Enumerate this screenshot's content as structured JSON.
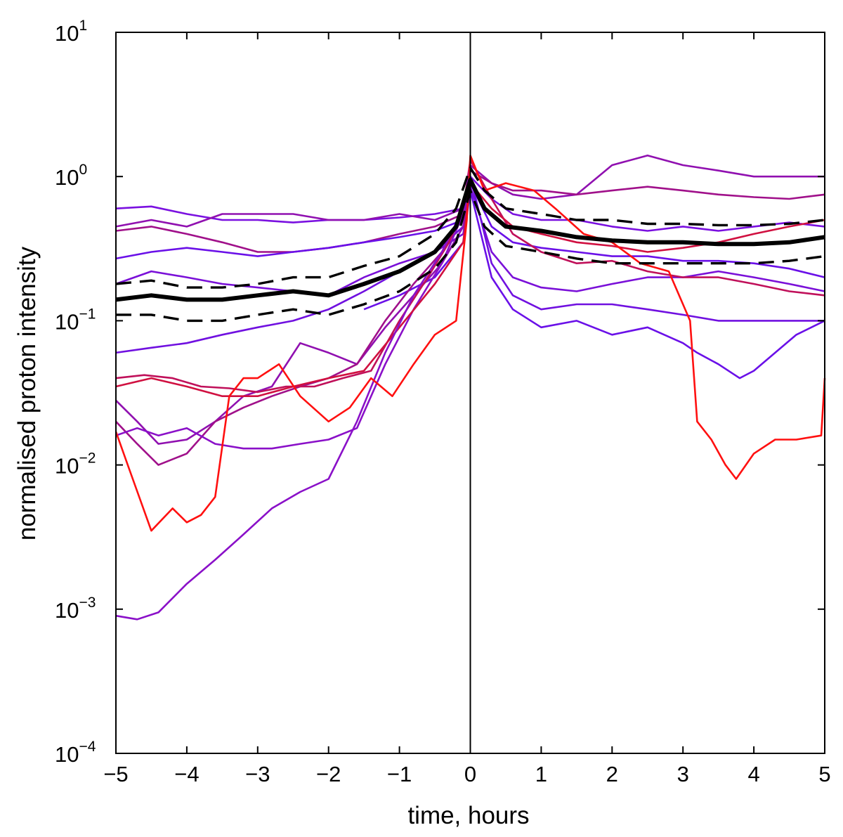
{
  "chart_data": {
    "type": "line",
    "title": "",
    "xlabel": "time, hours",
    "ylabel": "normalised proton intensity",
    "xlim": [
      -5,
      5
    ],
    "ylim": [
      0.0001,
      10
    ],
    "yscale": "log",
    "grid": false,
    "legend": "none",
    "x_ticks": [
      -5,
      -4,
      -3,
      -2,
      -1,
      0,
      1,
      2,
      3,
      4,
      5
    ],
    "x_tick_labels": [
      "−5",
      "−4",
      "−3",
      "−2",
      "−1",
      "0",
      "1",
      "2",
      "3",
      "4",
      "5"
    ],
    "y_ticks": [
      {
        "value": 0.0001,
        "base": "10",
        "exp": "−4"
      },
      {
        "value": 0.001,
        "base": "10",
        "exp": "−3"
      },
      {
        "value": 0.01,
        "base": "10",
        "exp": "−2"
      },
      {
        "value": 0.1,
        "base": "10",
        "exp": "−1"
      },
      {
        "value": 1,
        "base": "10",
        "exp": "0"
      },
      {
        "value": 10,
        "base": "10",
        "exp": "1"
      }
    ],
    "vline_x": 0,
    "series": [
      {
        "color": "#7a10e0",
        "x": [
          -5,
          -4.5,
          -4,
          -3.5,
          -3,
          -2.5,
          -2,
          -1.5,
          -1,
          -0.5,
          -0.1,
          0,
          0.3,
          0.6,
          1,
          1.5,
          2,
          2.5,
          3,
          3.5,
          4,
          4.5,
          5
        ],
        "y": [
          0.6,
          0.62,
          0.55,
          0.5,
          0.5,
          0.48,
          0.5,
          0.5,
          0.52,
          0.55,
          0.6,
          1.0,
          0.7,
          0.55,
          0.5,
          0.5,
          0.45,
          0.42,
          0.45,
          0.42,
          0.45,
          0.48,
          0.45
        ]
      },
      {
        "color": "#9010b0",
        "x": [
          -5,
          -4.5,
          -4,
          -3.5,
          -3,
          -2.5,
          -2,
          -1.5,
          -1,
          -0.5,
          -0.1,
          0,
          0.3,
          0.6,
          1,
          1.5,
          2,
          2.5,
          3,
          3.5,
          4,
          4.5,
          5
        ],
        "y": [
          0.45,
          0.5,
          0.45,
          0.55,
          0.55,
          0.55,
          0.5,
          0.5,
          0.55,
          0.5,
          0.6,
          1.2,
          0.9,
          0.75,
          0.7,
          0.75,
          1.2,
          1.4,
          1.2,
          1.1,
          1.0,
          1.0,
          1.0
        ]
      },
      {
        "color": "#a0108a",
        "x": [
          -5,
          -4.5,
          -4,
          -3.5,
          -3,
          -2.5,
          -2,
          -1.5,
          -1,
          -0.5,
          -0.1,
          0,
          0.3,
          0.6,
          1,
          1.5,
          2,
          2.5,
          3,
          3.5,
          4,
          4.5,
          5
        ],
        "y": [
          0.42,
          0.45,
          0.4,
          0.35,
          0.3,
          0.3,
          0.32,
          0.35,
          0.4,
          0.45,
          0.55,
          1.1,
          0.9,
          0.8,
          0.8,
          0.75,
          0.8,
          0.85,
          0.8,
          0.75,
          0.72,
          0.7,
          0.75
        ]
      },
      {
        "color": "#6a10e8",
        "x": [
          -5,
          -4.5,
          -4,
          -3.5,
          -3,
          -2.5,
          -2,
          -1.5,
          -1,
          -0.5,
          -0.1,
          0,
          0.3,
          0.6,
          1,
          1.5,
          2,
          2.5,
          3,
          3.5,
          4,
          4.5,
          5
        ],
        "y": [
          0.27,
          0.3,
          0.32,
          0.3,
          0.28,
          0.3,
          0.32,
          0.35,
          0.38,
          0.42,
          0.5,
          0.9,
          0.45,
          0.35,
          0.32,
          0.3,
          0.28,
          0.28,
          0.26,
          0.26,
          0.25,
          0.23,
          0.2
        ]
      },
      {
        "color": "#7a10d8",
        "x": [
          -5,
          -4.5,
          -4,
          -3.5,
          -3,
          -2.5,
          -2,
          -1.5,
          -1,
          -0.5,
          -0.1,
          0,
          0.3,
          0.6,
          1,
          1.5,
          2,
          2.5,
          3,
          3.5,
          4,
          4.5,
          5
        ],
        "y": [
          0.18,
          0.22,
          0.2,
          0.18,
          0.17,
          0.16,
          0.15,
          0.2,
          0.25,
          0.3,
          0.4,
          0.85,
          0.3,
          0.2,
          0.17,
          0.16,
          0.18,
          0.2,
          0.2,
          0.22,
          0.2,
          0.18,
          0.16
        ]
      },
      {
        "color": "#7010e0",
        "x": [
          -5,
          -4.5,
          -4,
          -3.5,
          -3,
          -2.5,
          -2,
          -1.5,
          -1,
          -0.5,
          -0.1,
          0,
          0.3,
          0.6,
          1,
          1.5,
          2,
          2.5,
          3,
          3.5,
          4,
          4.5,
          5
        ],
        "y": [
          0.06,
          0.065,
          0.07,
          0.08,
          0.09,
          0.1,
          0.12,
          0.16,
          0.22,
          0.3,
          0.45,
          1.0,
          0.25,
          0.15,
          0.12,
          0.13,
          0.13,
          0.12,
          0.11,
          0.1,
          0.1,
          0.1,
          0.1
        ]
      },
      {
        "color": "#6a10e8",
        "x": [
          -1.5,
          -1,
          -0.5,
          -0.1,
          0,
          0.3,
          0.6,
          1,
          1.5,
          2,
          2.5,
          3,
          3.2,
          3.5,
          3.8,
          4,
          4.3,
          4.6,
          5
        ],
        "y": [
          0.12,
          0.15,
          0.2,
          0.35,
          0.8,
          0.2,
          0.12,
          0.09,
          0.1,
          0.08,
          0.09,
          0.07,
          0.06,
          0.05,
          0.04,
          0.045,
          0.06,
          0.08,
          0.1
        ]
      },
      {
        "color": "#9010b0",
        "x": [
          -5,
          -4.7,
          -4.4,
          -4,
          -3.6,
          -3.2,
          -2.8,
          -2.4,
          -2,
          -1.6,
          -1.2,
          -0.8,
          -0.4,
          -0.1,
          0
        ],
        "y": [
          0.028,
          0.02,
          0.014,
          0.015,
          0.02,
          0.03,
          0.035,
          0.07,
          0.06,
          0.05,
          0.09,
          0.15,
          0.25,
          0.45,
          1.0
        ]
      },
      {
        "color": "#a0108a",
        "x": [
          -5,
          -4.7,
          -4.4,
          -4,
          -3.6,
          -3.2,
          -2.8,
          -2.4,
          -2,
          -1.6,
          -1.2,
          -0.8,
          -0.4,
          -0.1,
          0
        ],
        "y": [
          0.02,
          0.014,
          0.01,
          0.012,
          0.02,
          0.025,
          0.03,
          0.035,
          0.04,
          0.05,
          0.1,
          0.18,
          0.3,
          0.55,
          1.1
        ]
      },
      {
        "color": "#8a10c8",
        "x": [
          -5,
          -4.7,
          -4.4,
          -4,
          -3.6,
          -3.2,
          -2.8,
          -2.4,
          -2,
          -1.6,
          -1.2,
          -0.8,
          -0.4,
          -0.1,
          0
        ],
        "y": [
          0.016,
          0.018,
          0.016,
          0.018,
          0.014,
          0.013,
          0.013,
          0.014,
          0.015,
          0.018,
          0.05,
          0.12,
          0.25,
          0.55,
          1.0
        ]
      },
      {
        "color": "#c0105a",
        "x": [
          -5,
          -4.6,
          -4.2,
          -3.8,
          -3.4,
          -3,
          -2.6,
          -2.2,
          -1.8,
          -1.4,
          -1,
          -0.6,
          -0.3,
          -0.1,
          0,
          0.3,
          0.6,
          1,
          1.5,
          2,
          2.5,
          3,
          3.5,
          4,
          4.5,
          5
        ],
        "y": [
          0.04,
          0.042,
          0.04,
          0.035,
          0.034,
          0.032,
          0.035,
          0.035,
          0.04,
          0.045,
          0.1,
          0.2,
          0.35,
          0.6,
          1.3,
          0.7,
          0.4,
          0.3,
          0.25,
          0.26,
          0.22,
          0.2,
          0.2,
          0.18,
          0.16,
          0.15
        ]
      },
      {
        "color": "#d01040",
        "x": [
          -5,
          -4.5,
          -4,
          -3.5,
          -3,
          -2.5,
          -2,
          -1.5,
          -1,
          -0.5,
          -0.1,
          0,
          0.3,
          0.6,
          1,
          1.5,
          2,
          2.5,
          3,
          3.5,
          4,
          4.5,
          5
        ],
        "y": [
          0.035,
          0.04,
          0.035,
          0.03,
          0.03,
          0.035,
          0.04,
          0.045,
          0.09,
          0.18,
          0.35,
          0.9,
          0.6,
          0.45,
          0.4,
          0.35,
          0.33,
          0.3,
          0.32,
          0.35,
          0.4,
          0.45,
          0.5
        ]
      },
      {
        "color": "#8a10c8",
        "x": [
          -5,
          -4.7,
          -4.4,
          -4,
          -3.6,
          -3.2,
          -2.8,
          -2.4,
          -2,
          -1.6,
          -1.2,
          -0.8,
          -0.4,
          -0.1,
          0
        ],
        "y": [
          0.0009,
          0.00085,
          0.00095,
          0.0015,
          0.0022,
          0.0033,
          0.005,
          0.0065,
          0.008,
          0.02,
          0.06,
          0.15,
          0.3,
          0.6,
          1.2
        ]
      },
      {
        "color": "#ff1010",
        "x": [
          -5,
          -4.8,
          -4.5,
          -4.2,
          -4,
          -3.8,
          -3.6,
          -3.4,
          -3.2,
          -3,
          -2.7,
          -2.4,
          -2,
          -1.7,
          -1.4,
          -1.1,
          -0.8,
          -0.5,
          -0.2,
          -0.05,
          0,
          0.2,
          0.5,
          0.9,
          1.2,
          1.6,
          2,
          2.4,
          2.8,
          3.1,
          3.2,
          3.4,
          3.6,
          3.75,
          4,
          4.3,
          4.6,
          4.95,
          5
        ],
        "y": [
          0.017,
          0.009,
          0.0035,
          0.005,
          0.004,
          0.0045,
          0.006,
          0.03,
          0.04,
          0.04,
          0.05,
          0.03,
          0.02,
          0.025,
          0.04,
          0.03,
          0.05,
          0.08,
          0.1,
          0.5,
          1.4,
          0.8,
          0.9,
          0.8,
          0.6,
          0.4,
          0.35,
          0.25,
          0.22,
          0.1,
          0.02,
          0.015,
          0.01,
          0.008,
          0.012,
          0.015,
          0.015,
          0.016,
          0.04
        ]
      }
    ],
    "median_series": {
      "color": "#000000",
      "x": [
        -5,
        -4.5,
        -4,
        -3.5,
        -3,
        -2.5,
        -2,
        -1.5,
        -1,
        -0.5,
        -0.2,
        0,
        0.2,
        0.5,
        1,
        1.5,
        2,
        2.5,
        3,
        3.5,
        4,
        4.5,
        5
      ],
      "y": [
        0.14,
        0.15,
        0.14,
        0.14,
        0.15,
        0.16,
        0.15,
        0.18,
        0.22,
        0.3,
        0.45,
        0.95,
        0.6,
        0.45,
        0.42,
        0.38,
        0.36,
        0.35,
        0.35,
        0.34,
        0.34,
        0.35,
        0.38
      ]
    },
    "quartile_series": [
      {
        "color": "#000000",
        "x": [
          -5,
          -4.5,
          -4,
          -3.5,
          -3,
          -2.5,
          -2,
          -1.5,
          -1,
          -0.5,
          -0.2,
          0,
          0.2,
          0.5,
          1,
          1.5,
          2,
          2.5,
          3,
          3.5,
          4,
          4.5,
          5
        ],
        "y": [
          0.18,
          0.19,
          0.17,
          0.17,
          0.18,
          0.2,
          0.2,
          0.24,
          0.28,
          0.4,
          0.6,
          1.15,
          0.8,
          0.6,
          0.55,
          0.5,
          0.5,
          0.47,
          0.47,
          0.46,
          0.46,
          0.47,
          0.5
        ]
      },
      {
        "color": "#000000",
        "x": [
          -5,
          -4.5,
          -4,
          -3.5,
          -3,
          -2.5,
          -2,
          -1.5,
          -1,
          -0.5,
          -0.2,
          0,
          0.2,
          0.5,
          1,
          1.5,
          2,
          2.5,
          3,
          3.5,
          4,
          4.5,
          5
        ],
        "y": [
          0.11,
          0.11,
          0.1,
          0.1,
          0.11,
          0.12,
          0.11,
          0.13,
          0.16,
          0.23,
          0.35,
          0.8,
          0.45,
          0.33,
          0.3,
          0.27,
          0.25,
          0.25,
          0.25,
          0.25,
          0.25,
          0.26,
          0.28
        ]
      }
    ]
  }
}
